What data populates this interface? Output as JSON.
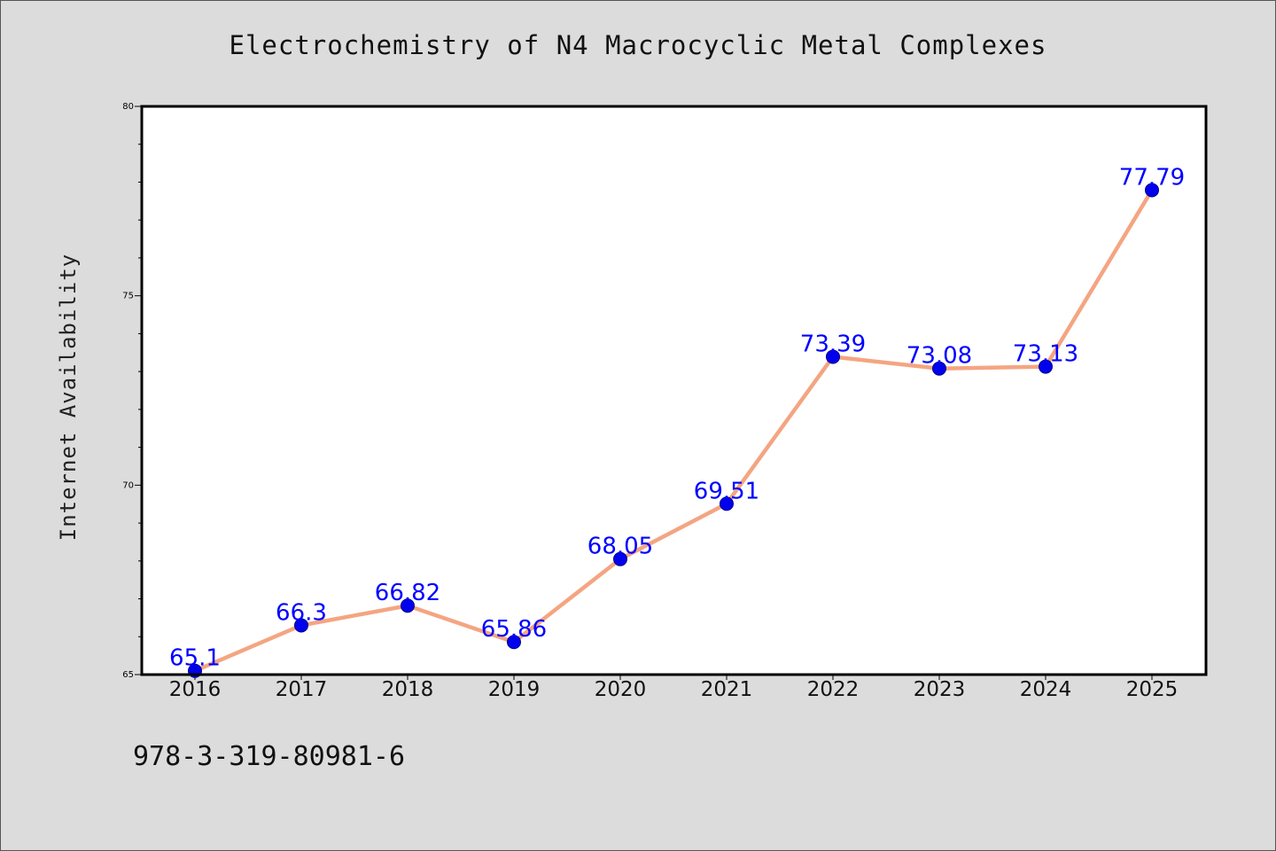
{
  "chart_data": {
    "type": "line",
    "title": "Electrochemistry of N4 Macrocyclic Metal Complexes",
    "xlabel": "",
    "ylabel": "Internet Availability",
    "categories": [
      "2016",
      "2017",
      "2018",
      "2019",
      "2020",
      "2021",
      "2022",
      "2023",
      "2024",
      "2025"
    ],
    "series": [
      {
        "values": [
          65.1,
          66.3,
          66.82,
          65.86,
          68.05,
          69.51,
          73.39,
          73.08,
          73.13,
          77.79
        ],
        "data_labels": [
          "65.1",
          "66.3",
          "66.82",
          "65.86",
          "68.05",
          "69.51",
          "73.39",
          "73.08",
          "73.13",
          "77.79"
        ]
      }
    ],
    "ylim": [
      65,
      80
    ],
    "yticks": [
      65,
      70,
      75,
      80
    ],
    "ytick_labels": [
      "65",
      "70",
      "75",
      "80"
    ],
    "grid": false,
    "colors": {
      "line": "#f4a582",
      "marker": "#0000ee",
      "marker_edge": "#00008b",
      "label": "#0000ff",
      "plot_bg": "#ffffff",
      "page_bg": "#dcdcdc"
    }
  },
  "footer_text": "978-3-319-80981-6"
}
